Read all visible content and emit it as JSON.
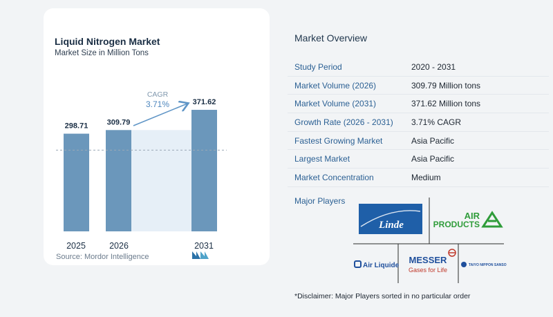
{
  "chart": {
    "title": "Liquid Nitrogen Market",
    "subtitle": "Market Size in Million Tons",
    "source": "Source:  Mordor Intelligence",
    "cagr_label": "CAGR",
    "cagr_value": "3.71%",
    "colors": {
      "bar": "#6b97bb",
      "bar_top": "#5a88ad",
      "highlight": "#e6eff7",
      "arrow": "#5f95c6"
    }
  },
  "chart_data": {
    "type": "bar",
    "categories": [
      "2025",
      "2026",
      "2031"
    ],
    "values": [
      298.71,
      309.79,
      371.62
    ],
    "value_labels": [
      "298.71",
      "309.79",
      "371.62"
    ],
    "title": "Liquid Nitrogen Market",
    "subtitle": "Market Size in Million Tons",
    "xlabel": "",
    "ylabel": "",
    "annotation": "CAGR 3.71%",
    "grid": false
  },
  "overview": {
    "title": "Market Overview",
    "rows": [
      {
        "key": "Study Period",
        "value": "2020 - 2031"
      },
      {
        "key": "Market Volume (2026)",
        "value": "309.79 Million tons"
      },
      {
        "key": "Market Volume (2031)",
        "value": "371.62 Million tons"
      },
      {
        "key": "Growth Rate (2026 - 2031)",
        "value": "3.71% CAGR"
      },
      {
        "key": "Fastest Growing Market",
        "value": "Asia Pacific"
      },
      {
        "key": "Largest Market",
        "value": "Asia Pacific"
      },
      {
        "key": "Market Concentration",
        "value": "Medium"
      }
    ],
    "players_label": "Major Players",
    "logos": {
      "linde": "Linde",
      "air_products_1": "AIR",
      "air_products_2": "PRODUCTS",
      "air_liquide": "Air Liquide",
      "messer": "MESSER",
      "messer_tag": "Gases for Life",
      "taiyo": "TAIYO NIPPON SANSO"
    },
    "disclaimer": "*Disclaimer: Major Players sorted in no particular order"
  }
}
